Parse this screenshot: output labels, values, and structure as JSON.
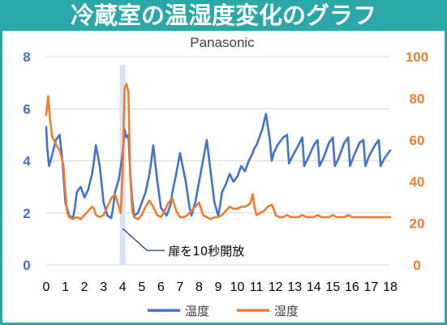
{
  "banner": {
    "title": "冷蔵室の温湿度変化のグラフ"
  },
  "colors": {
    "banner": "#2aa8a8",
    "temperature": "#4472c4",
    "humidity": "#ed7d31",
    "highlight": "#dae3f3",
    "grid": "#d9d9d9"
  },
  "chart_data": {
    "type": "line",
    "title": "Panasonic",
    "x_ticks": [
      "0",
      "1",
      "2",
      "3",
      "4",
      "5",
      "6",
      "7",
      "8",
      "9",
      "10",
      "11",
      "12",
      "13",
      "14",
      "15",
      "16",
      "17",
      "18"
    ],
    "xlim": [
      0,
      18
    ],
    "ylim_left": [
      0,
      8
    ],
    "y_ticks_left": [
      "0",
      "2",
      "4",
      "6",
      "8"
    ],
    "ylim_right": [
      0,
      100
    ],
    "y_ticks_right": [
      "0",
      "20",
      "40",
      "60",
      "80",
      "100"
    ],
    "grid": "horizontal",
    "legend_position": "bottom",
    "annotation": {
      "text": "扉を10秒開放",
      "x": 4.0
    },
    "highlight_band": [
      3.85,
      4.15
    ],
    "series": [
      {
        "name": "温度",
        "axis": "left",
        "color": "#4472c4",
        "x": [
          0.0,
          0.05,
          0.15,
          0.3,
          0.5,
          0.7,
          0.85,
          1.0,
          1.2,
          1.4,
          1.5,
          1.6,
          1.8,
          2.0,
          2.2,
          2.4,
          2.5,
          2.6,
          2.8,
          3.0,
          3.2,
          3.4,
          3.5,
          3.6,
          3.8,
          3.9,
          4.0,
          4.1,
          4.2,
          4.3,
          4.4,
          4.5,
          4.6,
          4.8,
          5.0,
          5.2,
          5.4,
          5.5,
          5.6,
          5.8,
          6.0,
          6.3,
          6.5,
          6.6,
          6.8,
          7.0,
          7.3,
          7.5,
          7.6,
          7.8,
          8.0,
          8.2,
          8.4,
          8.6,
          8.8,
          9.0,
          9.1,
          9.2,
          9.4,
          9.6,
          9.8,
          10.0,
          10.2,
          10.4,
          10.6,
          10.8,
          10.9,
          11.0,
          11.1,
          11.3,
          11.5,
          11.7,
          11.8,
          11.9,
          12.1,
          12.4,
          12.6,
          12.7,
          12.9,
          13.2,
          13.4,
          13.5,
          13.7,
          14.0,
          14.2,
          14.3,
          14.5,
          14.8,
          15.0,
          15.1,
          15.3,
          15.6,
          15.8,
          15.9,
          16.1,
          16.4,
          16.6,
          16.7,
          16.9,
          17.2,
          17.4,
          17.5,
          17.7,
          18.0
        ],
        "y": [
          5.3,
          4.5,
          3.8,
          4.2,
          4.8,
          5.0,
          4.0,
          2.4,
          1.9,
          1.8,
          2.2,
          2.8,
          3.0,
          2.6,
          2.9,
          3.5,
          4.0,
          4.6,
          3.8,
          2.4,
          1.9,
          1.8,
          2.2,
          2.8,
          3.3,
          3.8,
          4.3,
          5.2,
          4.9,
          5.0,
          3.5,
          2.5,
          1.9,
          2.0,
          2.4,
          2.8,
          3.5,
          4.0,
          4.6,
          3.3,
          2.2,
          1.9,
          2.3,
          2.8,
          3.5,
          4.3,
          3.2,
          2.2,
          1.9,
          2.4,
          3.2,
          4.0,
          4.8,
          3.6,
          2.4,
          1.9,
          2.3,
          2.8,
          3.1,
          3.5,
          3.2,
          3.4,
          3.8,
          3.6,
          4.0,
          4.3,
          4.5,
          4.6,
          4.8,
          5.2,
          5.8,
          4.8,
          4.0,
          4.3,
          4.6,
          4.9,
          5.0,
          3.9,
          4.2,
          4.6,
          4.9,
          3.8,
          4.1,
          4.6,
          4.8,
          3.8,
          4.1,
          4.7,
          4.9,
          3.8,
          4.1,
          4.7,
          4.9,
          3.8,
          4.2,
          4.7,
          4.8,
          3.8,
          4.2,
          4.6,
          4.8,
          3.8,
          4.1,
          4.4
        ]
      },
      {
        "name": "湿度",
        "axis": "right",
        "color": "#ed7d31",
        "x": [
          0.0,
          0.1,
          0.2,
          0.3,
          0.5,
          0.7,
          0.9,
          1.0,
          1.1,
          1.2,
          1.4,
          1.6,
          1.8,
          2.0,
          2.2,
          2.4,
          2.5,
          2.6,
          2.8,
          3.0,
          3.2,
          3.4,
          3.6,
          3.8,
          3.9,
          4.0,
          4.1,
          4.2,
          4.3,
          4.4,
          4.5,
          4.6,
          4.8,
          5.0,
          5.2,
          5.4,
          5.6,
          5.8,
          6.0,
          6.2,
          6.4,
          6.6,
          6.8,
          7.0,
          7.2,
          7.4,
          7.6,
          7.8,
          8.0,
          8.2,
          8.4,
          8.6,
          8.8,
          9.0,
          9.2,
          9.4,
          9.6,
          9.8,
          10.0,
          10.2,
          10.4,
          10.6,
          10.7,
          10.8,
          10.9,
          11.0,
          11.2,
          11.4,
          11.6,
          11.8,
          11.9,
          12.0,
          12.2,
          12.4,
          12.6,
          12.8,
          13.0,
          13.2,
          13.4,
          13.6,
          13.8,
          14.0,
          14.2,
          14.4,
          14.6,
          14.8,
          15.0,
          15.2,
          15.4,
          15.6,
          15.8,
          16.0,
          16.2,
          16.4,
          16.6,
          16.8,
          17.0,
          17.2,
          17.4,
          17.6,
          17.8,
          18.0
        ],
        "y": [
          72,
          81,
          70,
          62,
          58,
          55,
          48,
          35,
          25,
          23,
          22,
          23,
          22,
          24,
          26,
          28,
          27,
          24,
          23,
          24,
          28,
          32,
          34,
          28,
          25,
          45,
          85,
          87,
          83,
          42,
          26,
          23,
          22,
          24,
          28,
          31,
          28,
          24,
          23,
          26,
          30,
          32,
          26,
          23,
          23,
          24,
          26,
          28,
          30,
          24,
          23,
          22,
          23,
          23,
          24,
          26,
          28,
          27,
          27,
          28,
          28,
          29,
          30,
          34,
          28,
          24,
          25,
          26,
          28,
          29,
          27,
          24,
          23,
          23,
          24,
          23,
          23,
          23,
          24,
          23,
          23,
          23,
          24,
          23,
          23,
          23,
          24,
          23,
          23,
          23,
          24,
          23,
          23,
          23,
          23,
          23,
          23,
          23,
          23,
          23,
          23,
          23
        ]
      }
    ]
  }
}
